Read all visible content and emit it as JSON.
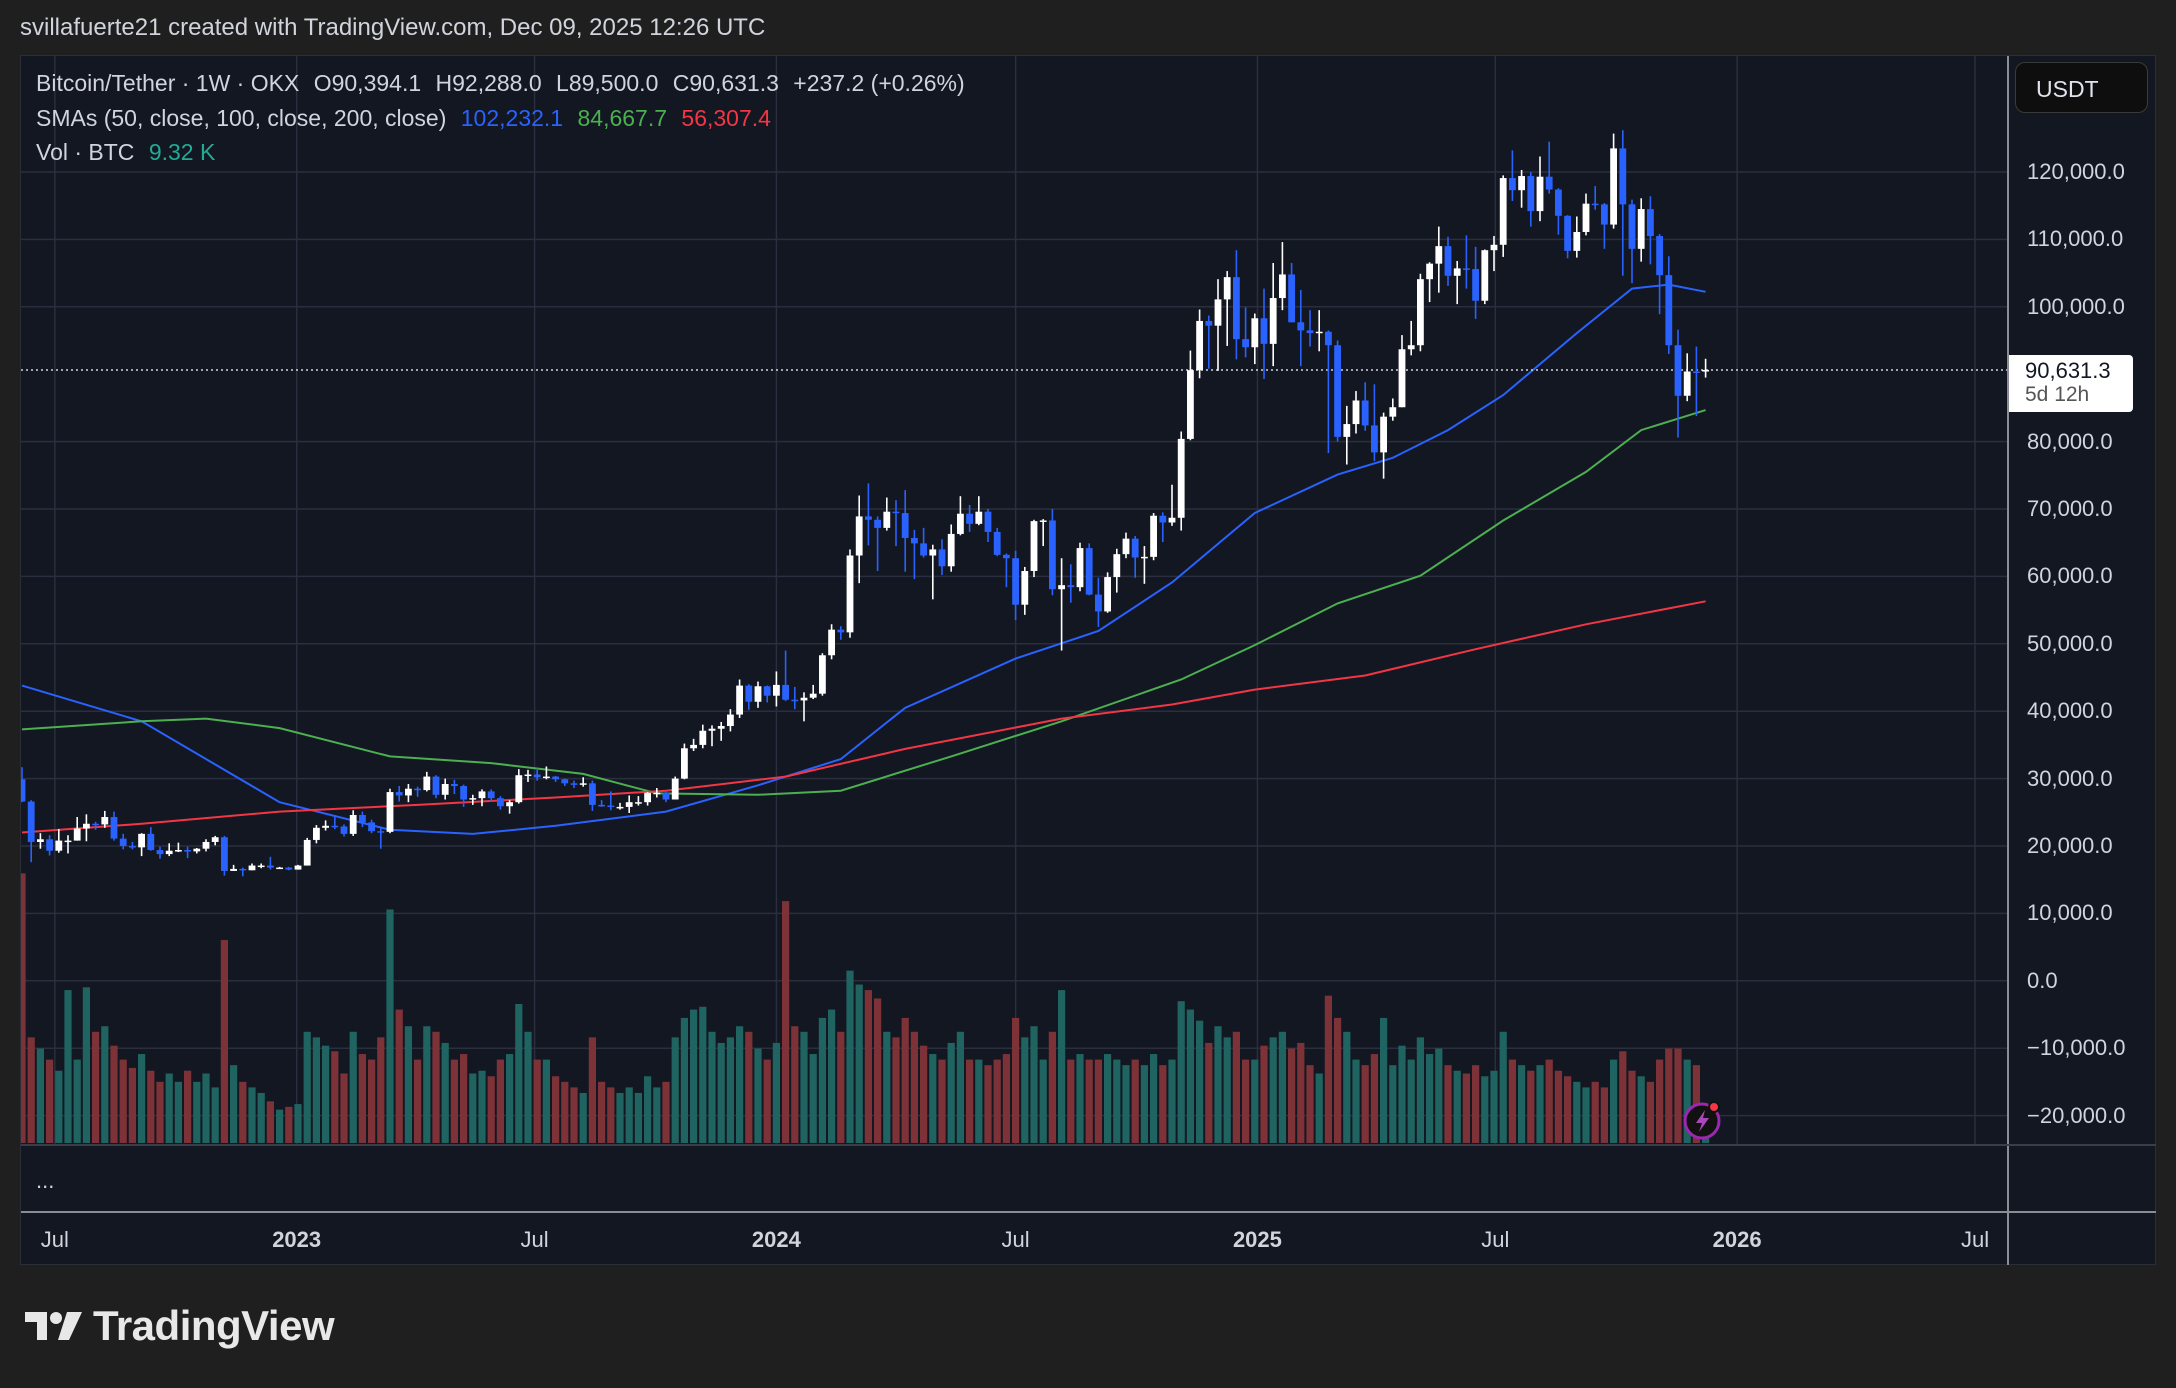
{
  "credit": "svillafuerte21 created with TradingView.com, Dec 09, 2025 12:26 UTC",
  "legend": {
    "symbol": "Bitcoin/Tether · 1W · OKX",
    "open": "O90,394.1",
    "high": "H92,288.0",
    "low": "L89,500.0",
    "close": "C90,631.3",
    "change": "+237.2 (+0.26%)",
    "sma_label": "SMAs (50, close, 100, close, 200, close)",
    "sma50_value": "102,232.1",
    "sma100_value": "84,667.7",
    "sma200_value": "56,307.4",
    "vol_label": "Vol · BTC",
    "vol_value": "9.32 K"
  },
  "currency_button": "USDT",
  "last_price": {
    "price": "90,631.3",
    "countdown": "5d 12h"
  },
  "more_indicator": "...",
  "logo_text": "TradingView",
  "colors": {
    "up": "#ffffff",
    "down": "#2962ff",
    "sma50": "#2962ff",
    "sma100": "#4caf50",
    "sma200": "#f23645",
    "vol_up": "#1f6461",
    "vol_down": "#7d3238",
    "background": "#131722",
    "grid": "#2a2e3e"
  },
  "chart_data": {
    "type": "candlestick",
    "interval": "1W",
    "first_week": "2022-06-06",
    "first_open": 29900,
    "close": [
      26600,
      20600,
      21000,
      19300,
      20800,
      20800,
      22600,
      23300,
      23200,
      24300,
      21100,
      20000,
      19800,
      21800,
      19400,
      18800,
      19300,
      19400,
      19200,
      19600,
      20600,
      21300,
      16300,
      16600,
      16400,
      17100,
      17100,
      16800,
      16800,
      16500,
      17100,
      20900,
      22700,
      23000,
      22900,
      21800,
      24600,
      23500,
      22200,
      22100,
      28000,
      27500,
      28500,
      28300,
      30300,
      27600,
      29200,
      28900,
      26900,
      27100,
      28100,
      27100,
      25900,
      26500,
      30500,
      30600,
      30200,
      30300,
      29900,
      29300,
      29100,
      29300,
      26100,
      26000,
      25800,
      25800,
      26500,
      26500,
      27900,
      27900,
      26900,
      30000,
      34500,
      35000,
      37100,
      37400,
      37800,
      39500,
      43800,
      41400,
      43700,
      42300,
      43900,
      41700,
      41600,
      42000,
      42600,
      48300,
      52100,
      51700,
      63100,
      68900,
      68400,
      67200,
      69600,
      69400,
      65700,
      64900,
      63100,
      64000,
      61500,
      66300,
      69300,
      67800,
      69600,
      66600,
      63200,
      62700,
      55800,
      60800,
      68200,
      68300,
      58100,
      58700,
      58400,
      64200,
      57300,
      54800,
      59900,
      63300,
      65600,
      62800,
      62900,
      69000,
      68000,
      68700,
      80400,
      90600,
      97900,
      97200,
      101100,
      104400,
      95200,
      94000,
      98300,
      94500,
      101300,
      104800,
      97700,
      96500,
      96100,
      96300,
      94300,
      80700,
      82600,
      86100,
      82400,
      78400,
      83700,
      85100,
      93700,
      94300,
      104100,
      106400,
      109000,
      104600,
      105700,
      105600,
      100900,
      108400,
      109200,
      119100,
      117300,
      119400,
      114200,
      119300,
      117400,
      113500,
      108300,
      111100,
      115300,
      115200,
      112200,
      123500,
      115200,
      108600,
      114500,
      110500,
      104700,
      94300,
      86800,
      90400,
      90394.1,
      90631.3
    ],
    "high": [
      31700,
      26800,
      21900,
      21600,
      22500,
      21600,
      24300,
      24700,
      23600,
      25200,
      25100,
      21800,
      20600,
      21900,
      22800,
      19900,
      20400,
      20500,
      19900,
      19700,
      21000,
      21500,
      21500,
      17200,
      16800,
      17400,
      17400,
      18400,
      16900,
      16900,
      17200,
      21200,
      23100,
      23800,
      24300,
      23200,
      25300,
      25100,
      23900,
      22600,
      28500,
      28900,
      29200,
      28800,
      31000,
      30500,
      30000,
      29800,
      29100,
      27600,
      28400,
      28400,
      27400,
      26800,
      31400,
      31300,
      31500,
      31800,
      30400,
      30000,
      29700,
      30200,
      29700,
      26800,
      28100,
      26400,
      27500,
      27400,
      28000,
      28600,
      28000,
      30300,
      35200,
      35900,
      38000,
      37900,
      38400,
      40300,
      44700,
      44000,
      44400,
      43800,
      45900,
      49000,
      43600,
      42800,
      43900,
      48600,
      52900,
      52600,
      64000,
      72000,
      73800,
      68900,
      71700,
      71300,
      72800,
      66900,
      67200,
      64700,
      65500,
      67700,
      71900,
      70600,
      71900,
      70000,
      67200,
      63400,
      63800,
      61400,
      68400,
      68500,
      70000,
      62700,
      61800,
      65000,
      64900,
      59800,
      60600,
      64100,
      66500,
      66000,
      64500,
      69400,
      69500,
      73600,
      81500,
      93500,
      99600,
      98700,
      104100,
      105300,
      108400,
      99900,
      99000,
      102700,
      106500,
      109600,
      106500,
      102500,
      99500,
      99500,
      96500,
      95000,
      85300,
      87500,
      88800,
      88500,
      84300,
      86400,
      95800,
      97900,
      104900,
      106600,
      111900,
      110400,
      106800,
      110600,
      108900,
      108500,
      110500,
      119500,
      123200,
      120300,
      120000,
      122300,
      124500,
      117600,
      113600,
      113400,
      116800,
      117900,
      115400,
      125700,
      126200,
      115900,
      116100,
      116400,
      110800,
      107500,
      96600,
      93100,
      94100,
      92288
    ],
    "low": [
      26500,
      17600,
      19600,
      18600,
      19000,
      18900,
      20800,
      20700,
      22400,
      22700,
      20800,
      19500,
      19500,
      18500,
      19300,
      18100,
      18500,
      19100,
      18200,
      18900,
      19200,
      20100,
      15600,
      16300,
      15500,
      16400,
      16700,
      16500,
      16600,
      16400,
      16500,
      17100,
      20400,
      22300,
      22500,
      21400,
      21500,
      22800,
      21900,
      19600,
      21900,
      26600,
      26500,
      27300,
      28100,
      27100,
      26900,
      27700,
      25800,
      26100,
      25900,
      26600,
      25400,
      24800,
      26300,
      29500,
      29700,
      29900,
      29500,
      28900,
      28600,
      28800,
      25200,
      25800,
      25300,
      25400,
      24900,
      26000,
      26000,
      27200,
      26500,
      26900,
      29900,
      34100,
      34500,
      34800,
      35600,
      37000,
      39000,
      40200,
      40500,
      41300,
      40700,
      41500,
      40300,
      38500,
      41800,
      42300,
      47700,
      50600,
      50900,
      59000,
      64600,
      60800,
      66800,
      64500,
      60700,
      59600,
      62800,
      56600,
      60200,
      60700,
      66100,
      66600,
      67600,
      65100,
      63000,
      58400,
      53500,
      54300,
      59900,
      64500,
      57200,
      49000,
      56100,
      57800,
      57200,
      52500,
      54600,
      57600,
      62700,
      59800,
      58900,
      62400,
      65100,
      67500,
      66800,
      80200,
      89400,
      90800,
      90500,
      94200,
      92200,
      92500,
      91500,
      89300,
      91200,
      99500,
      97700,
      91200,
      94100,
      93400,
      78300,
      80000,
      76600,
      81200,
      81600,
      77100,
      74500,
      83100,
      85100,
      92800,
      93400,
      100700,
      102100,
      103100,
      100400,
      102700,
      98200,
      100400,
      105300,
      107400,
      115700,
      114700,
      111900,
      112700,
      116800,
      110700,
      107200,
      107300,
      110600,
      114400,
      108600,
      111600,
      104600,
      103500,
      106700,
      106300,
      98900,
      93000,
      80600,
      86000,
      83800,
      89500
    ],
    "volume_k_btc": [
      97,
      38,
      34,
      30,
      26,
      55,
      30,
      56,
      40,
      42,
      35,
      30,
      27,
      32,
      26,
      22,
      25,
      22,
      26,
      22,
      25,
      20,
      73,
      28,
      22,
      20,
      18,
      15,
      12,
      13,
      14,
      40,
      38,
      35,
      33,
      25,
      40,
      32,
      30,
      38,
      84,
      48,
      42,
      30,
      42,
      40,
      36,
      30,
      32,
      25,
      26,
      24,
      30,
      32,
      50,
      40,
      30,
      30,
      24,
      22,
      20,
      18,
      38,
      22,
      20,
      18,
      20,
      18,
      24,
      20,
      22,
      38,
      45,
      48,
      49,
      40,
      36,
      38,
      42,
      40,
      34,
      30,
      36,
      87,
      42,
      40,
      32,
      45,
      48,
      40,
      62,
      57,
      55,
      52,
      40,
      38,
      45,
      40,
      35,
      32,
      30,
      36,
      40,
      30,
      30,
      28,
      30,
      32,
      45,
      38,
      42,
      30,
      40,
      55,
      30,
      32,
      30,
      30,
      32,
      30,
      28,
      30,
      28,
      32,
      28,
      30,
      51,
      48,
      44,
      36,
      42,
      38,
      40,
      30,
      30,
      35,
      38,
      40,
      34,
      36,
      28,
      25,
      53,
      45,
      40,
      30,
      28,
      32,
      45,
      28,
      35,
      30,
      38,
      32,
      34,
      28,
      26,
      25,
      28,
      24,
      26,
      40,
      30,
      28,
      26,
      28,
      30,
      26,
      24,
      22,
      20,
      22,
      20,
      30,
      33,
      26,
      24,
      22,
      30,
      34,
      34,
      30,
      28,
      9.32
    ],
    "sma": [
      {
        "name": "SMA 50",
        "color": "#2962ff",
        "points": [
          [
            "2022-06-06",
            43800
          ],
          [
            "2022-09-05",
            38500
          ],
          [
            "2022-12-19",
            26500
          ],
          [
            "2023-03-13",
            22400
          ],
          [
            "2023-05-15",
            21800
          ],
          [
            "2023-07-17",
            23000
          ],
          [
            "2023-10-09",
            25100
          ],
          [
            "2023-12-18",
            29000
          ],
          [
            "2024-02-19",
            32900
          ],
          [
            "2024-04-08",
            40500
          ],
          [
            "2024-07-01",
            47800
          ],
          [
            "2024-09-02",
            51900
          ],
          [
            "2024-10-28",
            59100
          ],
          [
            "2024-12-30",
            69400
          ],
          [
            "2025-03-03",
            75100
          ],
          [
            "2025-04-14",
            77600
          ],
          [
            "2025-05-26",
            81700
          ],
          [
            "2025-07-07",
            86900
          ],
          [
            "2025-09-01",
            96100
          ],
          [
            "2025-10-13",
            102700
          ],
          [
            "2025-11-10",
            103300
          ],
          [
            "2025-12-08",
            102232.1
          ]
        ]
      },
      {
        "name": "SMA 100",
        "color": "#4caf50",
        "points": [
          [
            "2022-06-06",
            37300
          ],
          [
            "2022-09-05",
            38500
          ],
          [
            "2022-10-24",
            38900
          ],
          [
            "2022-12-19",
            37500
          ],
          [
            "2023-03-13",
            33300
          ],
          [
            "2023-05-29",
            32300
          ],
          [
            "2023-08-07",
            30700
          ],
          [
            "2023-10-02",
            27800
          ],
          [
            "2023-12-18",
            27600
          ],
          [
            "2024-02-19",
            28200
          ],
          [
            "2024-05-13",
            33300
          ],
          [
            "2024-08-05",
            38500
          ],
          [
            "2024-11-04",
            44700
          ],
          [
            "2024-12-30",
            49800
          ],
          [
            "2025-03-03",
            56000
          ],
          [
            "2025-05-05",
            60100
          ],
          [
            "2025-07-07",
            68300
          ],
          [
            "2025-09-08",
            75500
          ],
          [
            "2025-10-20",
            81700
          ],
          [
            "2025-12-08",
            84667.7
          ]
        ]
      },
      {
        "name": "SMA 200",
        "color": "#f23645",
        "points": [
          [
            "2022-06-06",
            22000
          ],
          [
            "2022-09-05",
            23300
          ],
          [
            "2022-12-19",
            25100
          ],
          [
            "2023-04-03",
            26100
          ],
          [
            "2023-07-17",
            27200
          ],
          [
            "2023-10-09",
            28200
          ],
          [
            "2024-01-08",
            30300
          ],
          [
            "2024-04-08",
            34400
          ],
          [
            "2024-08-05",
            38900
          ],
          [
            "2024-10-28",
            41000
          ],
          [
            "2024-12-30",
            43200
          ],
          [
            "2025-03-24",
            45300
          ],
          [
            "2025-06-16",
            49200
          ],
          [
            "2025-09-08",
            52900
          ],
          [
            "2025-12-08",
            56307.4
          ]
        ]
      }
    ],
    "last_price_line": 90631.3,
    "y_ticks": [
      "120,000.0",
      "110,000.0",
      "100,000.0",
      "80,000.0",
      "70,000.0",
      "60,000.0",
      "50,000.0",
      "40,000.0",
      "30,000.0",
      "20,000.0",
      "10,000.0",
      "0.0",
      "−10,000.0",
      "−20,000.0"
    ],
    "y_tick_values": [
      120000,
      110000,
      100000,
      80000,
      70000,
      60000,
      50000,
      40000,
      30000,
      20000,
      10000,
      0,
      -10000,
      -20000
    ],
    "x_ticks": [
      {
        "label": "Jul",
        "date": "2022-07-01",
        "year": false
      },
      {
        "label": "2023",
        "date": "2023-01-01",
        "year": true
      },
      {
        "label": "Jul",
        "date": "2023-07-01",
        "year": false
      },
      {
        "label": "2024",
        "date": "2024-01-01",
        "year": true
      },
      {
        "label": "Jul",
        "date": "2024-07-01",
        "year": false
      },
      {
        "label": "2025",
        "date": "2025-01-01",
        "year": true
      },
      {
        "label": "Jul",
        "date": "2025-07-01",
        "year": false
      },
      {
        "label": "2026",
        "date": "2026-01-01",
        "year": true
      },
      {
        "label": "Jul",
        "date": "2026-07-01",
        "year": false
      }
    ],
    "grid": true,
    "legend": "top-left"
  }
}
